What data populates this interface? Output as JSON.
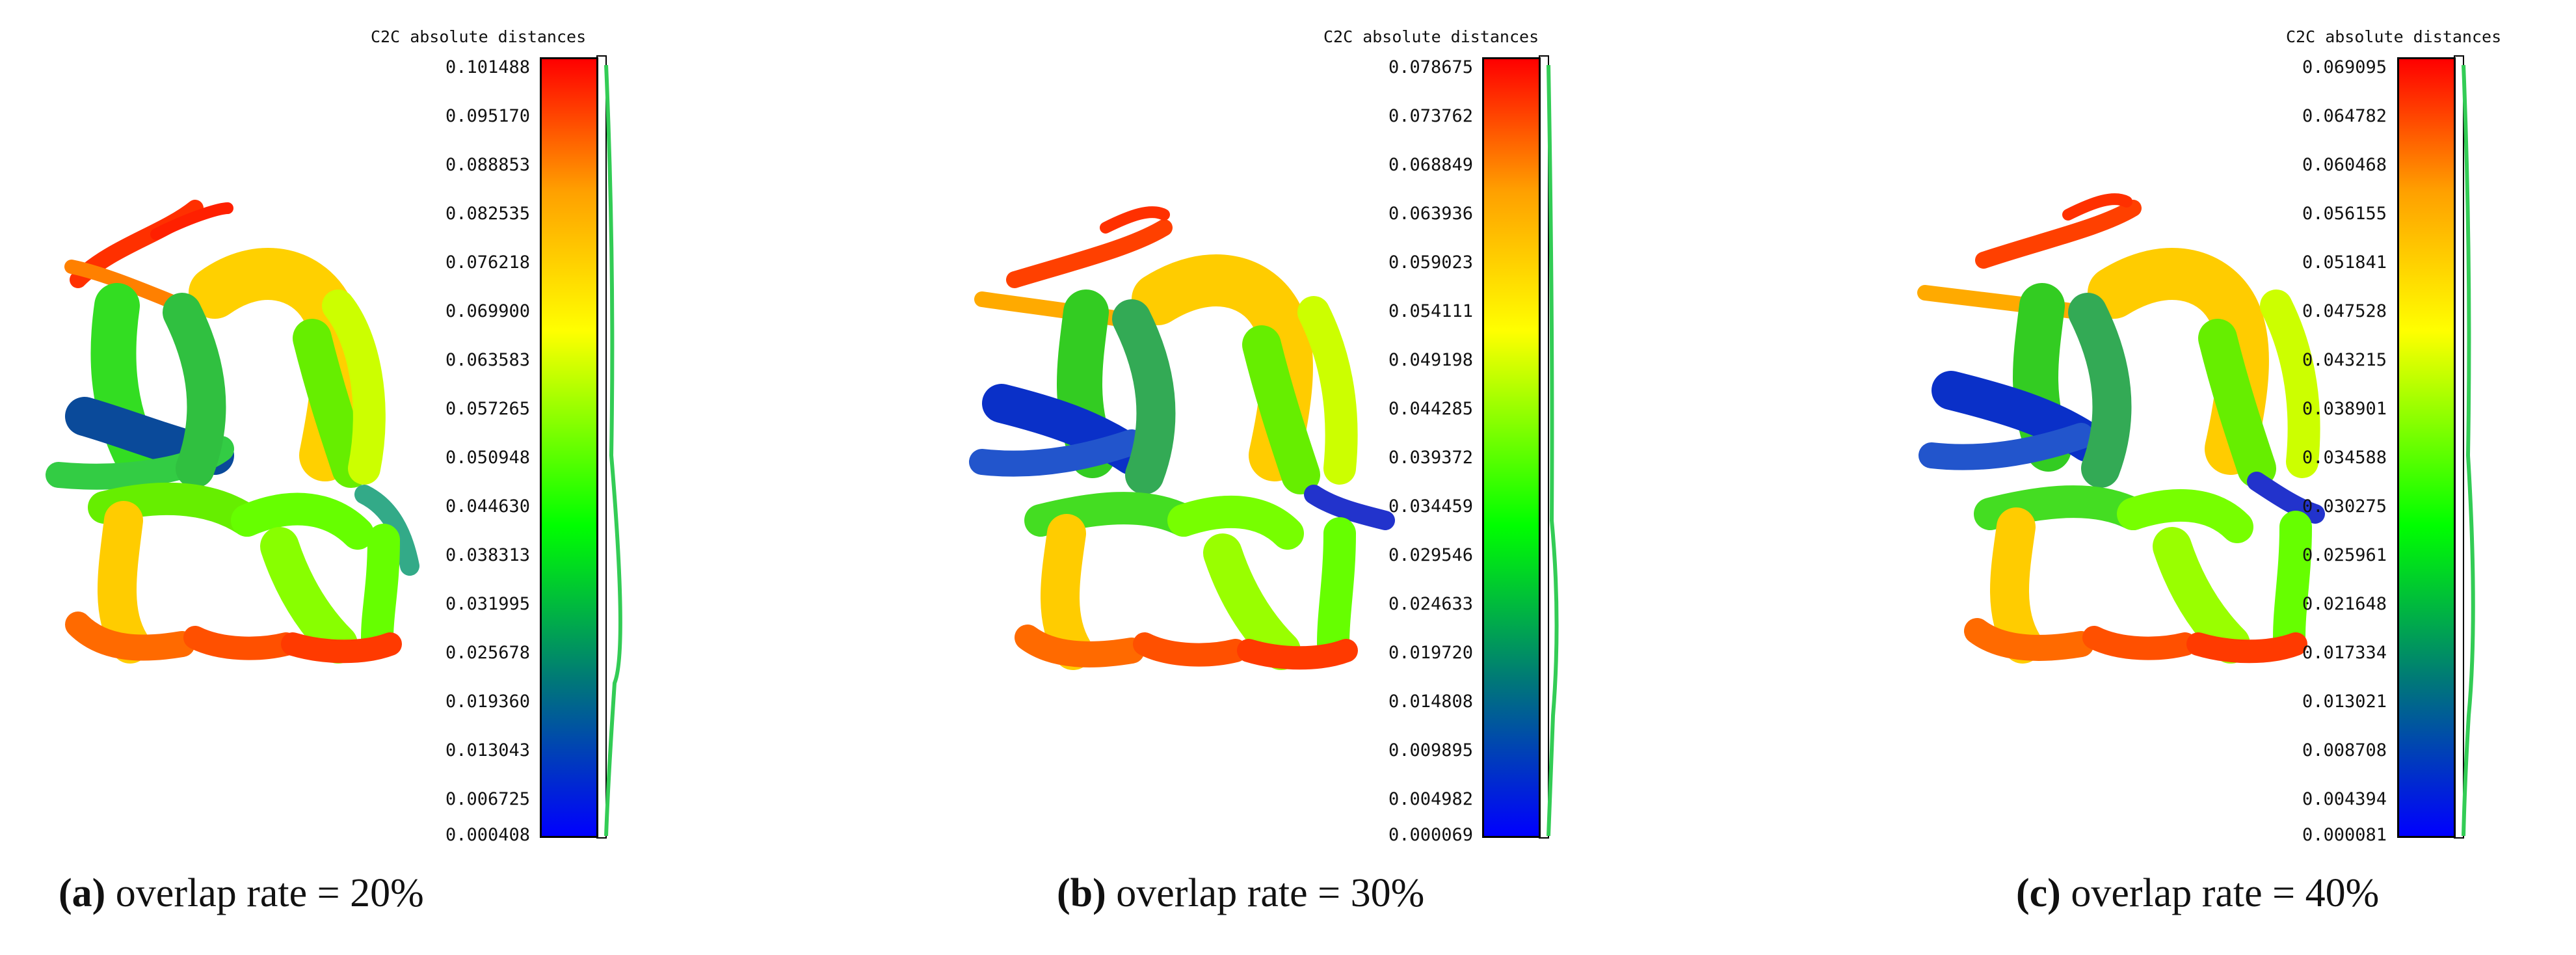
{
  "colors": {
    "scale_top": "#ff0000",
    "scale_upper": "#ffa000",
    "scale_mid_upper": "#ffff00",
    "scale_mid": "#00ff00",
    "scale_lower": "#007878",
    "scale_bottom": "#0000ff"
  },
  "panels": [
    {
      "label": "(a)",
      "caption": "overlap rate = 20%",
      "scalar_field_title": "C2C absolute distances",
      "ticks": [
        "0.101488",
        "0.095170",
        "0.088853",
        "0.082535",
        "0.076218",
        "0.069900",
        "0.063583",
        "0.057265",
        "0.050948",
        "0.044630",
        "0.038313",
        "0.031995",
        "0.025678",
        "0.019360",
        "0.013043",
        "0.006725",
        "0.000408"
      ]
    },
    {
      "label": "(b)",
      "caption": "overlap rate = 30%",
      "scalar_field_title": "C2C absolute distances",
      "ticks": [
        "0.078675",
        "0.073762",
        "0.068849",
        "0.063936",
        "0.059023",
        "0.054111",
        "0.049198",
        "0.044285",
        "0.039372",
        "0.034459",
        "0.029546",
        "0.024633",
        "0.019720",
        "0.014808",
        "0.009895",
        "0.004982",
        "0.000069"
      ]
    },
    {
      "label": "(c)",
      "caption": "overlap rate = 40%",
      "scalar_field_title": "C2C absolute distances",
      "ticks": [
        "0.069095",
        "0.064782",
        "0.060468",
        "0.056155",
        "0.051841",
        "0.047528",
        "0.043215",
        "0.038901",
        "0.034588",
        "0.030275",
        "0.025961",
        "0.021648",
        "0.017334",
        "0.013021",
        "0.008708",
        "0.004394",
        "0.000081"
      ]
    }
  ]
}
